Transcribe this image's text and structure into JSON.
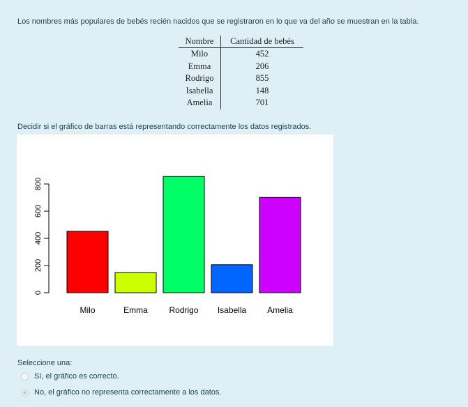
{
  "question": {
    "intro": "Los nombres más populares de bebés recién nacidos que se registraron en lo que va del año se muestran en la tabla.",
    "table": {
      "headers": [
        "Nombre",
        "Cantidad de bebés"
      ],
      "rows": [
        {
          "name": "Milo",
          "count": "452"
        },
        {
          "name": "Emma",
          "count": "206"
        },
        {
          "name": "Rodrigo",
          "count": "855"
        },
        {
          "name": "Isabella",
          "count": "148"
        },
        {
          "name": "Amelia",
          "count": "701"
        }
      ]
    },
    "instruction": "Decidir si el gráfico de barras está representando correctamente los datos registrados.",
    "prompt": "Seleccione una:",
    "options": [
      {
        "label": "Sí, el gráfico es correcto.",
        "checked": false
      },
      {
        "label": "No, el gráfico no representa correctamente a los datos.",
        "checked": true
      }
    ]
  },
  "chart_data": {
    "type": "bar",
    "categories": [
      "Milo",
      "Emma",
      "Rodrigo",
      "Isabella",
      "Amelia"
    ],
    "values": [
      452,
      148,
      855,
      206,
      701
    ],
    "colors": [
      "#ff0000",
      "#ccff00",
      "#00ff66",
      "#0066ff",
      "#cc00ff"
    ],
    "ylim": [
      0,
      800
    ],
    "yticks": [
      "0",
      "200",
      "400",
      "600",
      "800"
    ],
    "ytick_values": [
      0,
      200,
      400,
      600,
      800
    ],
    "title": "",
    "xlabel": "",
    "ylabel": "",
    "grid": false
  }
}
